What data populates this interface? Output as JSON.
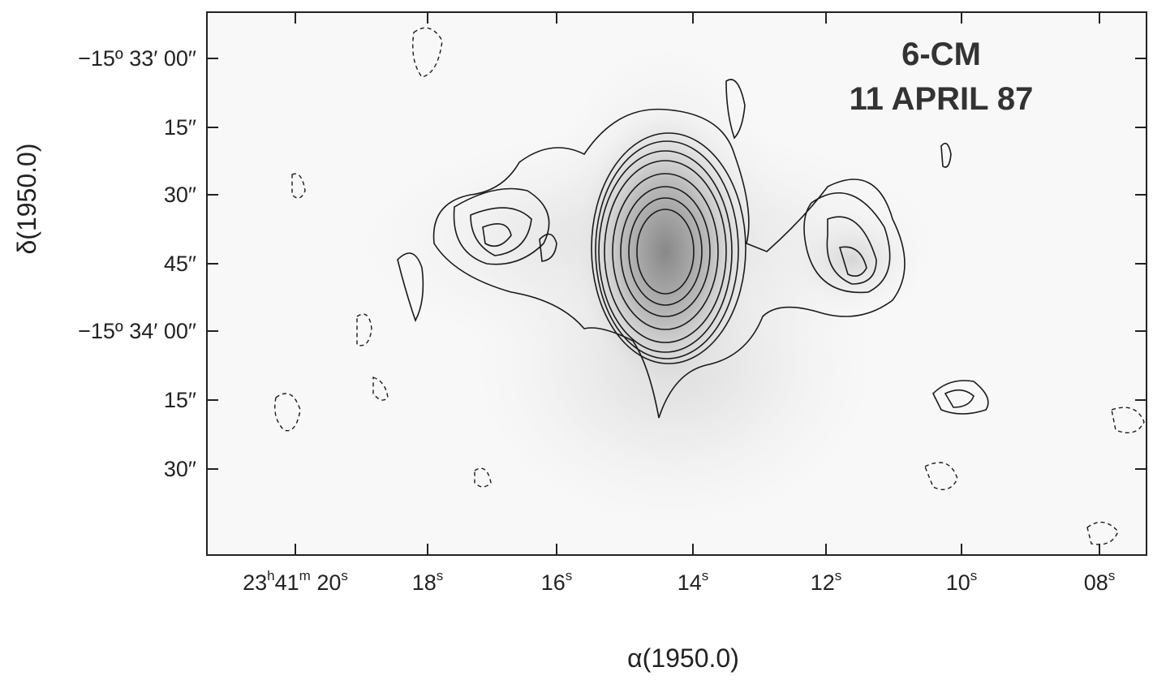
{
  "figure": {
    "annotation": [
      "6-CM",
      "11 APRIL 87"
    ],
    "x_axis_label": "α(1950.0)",
    "y_axis_label": "δ(1950.0)",
    "x_tick_labels": [
      [
        "23",
        "h",
        "41",
        "m",
        " 20",
        "s"
      ],
      [
        "18",
        "s"
      ],
      [
        "16",
        "s"
      ],
      [
        "14",
        "s"
      ],
      [
        "12",
        "s"
      ],
      [
        "10",
        "s"
      ],
      [
        "08",
        "s"
      ]
    ],
    "y_tick_labels": [
      "−15º 33′ 00′′",
      "15′′",
      "30′′",
      "45′′",
      "−15º 34′ 00′′",
      "15′′",
      "30′′"
    ]
  }
}
